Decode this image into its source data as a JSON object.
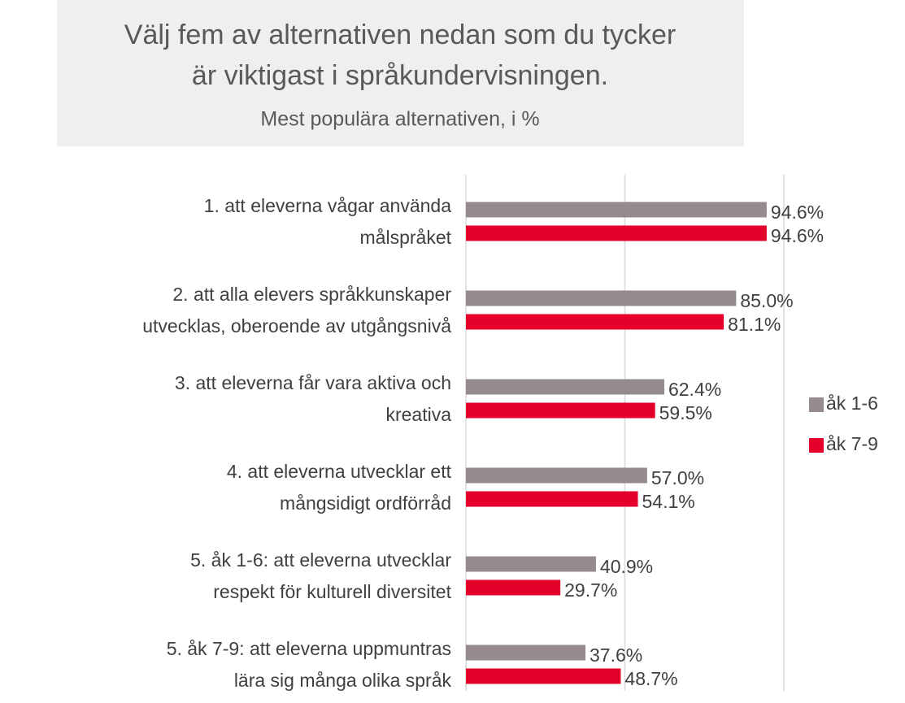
{
  "chart_data": {
    "type": "bar",
    "orientation": "horizontal",
    "title": [
      "Välj fem av alternativen nedan som du tycker",
      "är viktigast i språkundervisningen."
    ],
    "subtitle": "Mest populära alternativen, i %",
    "categories": [
      [
        "1. att eleverna vågar använda",
        "målspråket"
      ],
      [
        "2. att alla elevers språkkunskaper",
        "utvecklas, oberoende av utgångsnivå"
      ],
      [
        "3. att eleverna får vara aktiva och",
        "kreativa"
      ],
      [
        "4. att eleverna utvecklar ett",
        "mångsidigt ordförråd"
      ],
      [
        "5. åk 1-6: att eleverna utvecklar",
        "respekt för kulturell diversitet"
      ],
      [
        "5. åk 7-9: att eleverna uppmuntras",
        "lära sig många olika språk"
      ]
    ],
    "series": [
      {
        "name": "åk 1-6",
        "color": "#958b8e",
        "values": [
          94.6,
          85.0,
          62.4,
          57.0,
          40.9,
          37.6
        ],
        "value_labels": [
          "94.6%",
          "85.0%",
          "62.4%",
          "57.0%",
          "40.9%",
          "37.6%"
        ]
      },
      {
        "name": "åk 7-9",
        "color": "#e4002b",
        "values": [
          94.6,
          81.1,
          59.5,
          54.1,
          29.7,
          48.7
        ],
        "value_labels": [
          "94.6%",
          "81.1%",
          "59.5%",
          "54.1%",
          "29.7%",
          "48.7%"
        ]
      }
    ],
    "xlim": [
      0,
      100
    ],
    "xticks": [
      0,
      50,
      100
    ],
    "grid": true,
    "legend": "right"
  }
}
